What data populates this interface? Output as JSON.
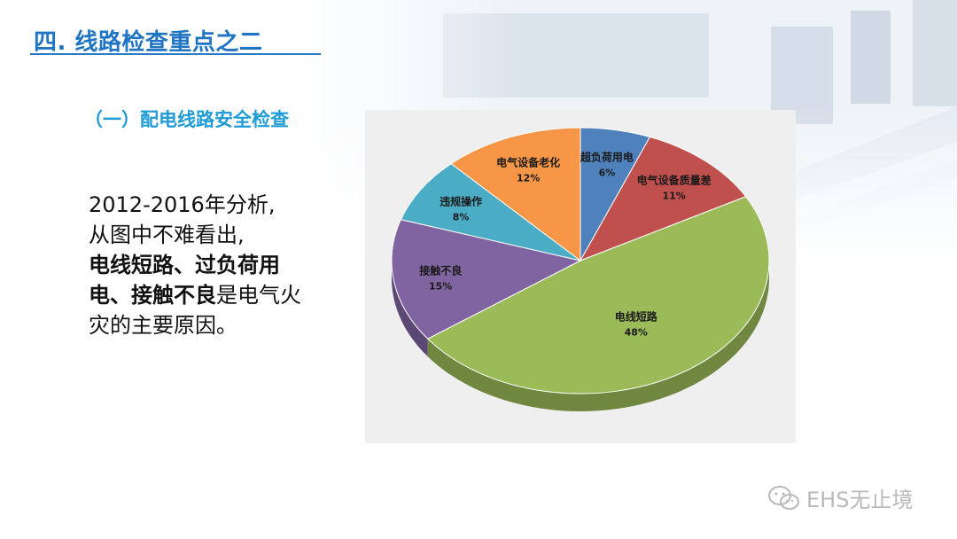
{
  "header": {
    "title": "四. 线路检查重点之二"
  },
  "subtitle": "（一）配电线路安全检查",
  "body": {
    "line1": "2012-2016年分析,",
    "line2": "从图中不难看出,",
    "bold": "电线短路、过负荷用电、接触不良",
    "line3": "是电气火灾的主要原因。"
  },
  "watermark": {
    "text": "EHS无止境",
    "icon": "wechat-icon"
  },
  "colors": {
    "title": "#1f74c4",
    "subtitle": "#1f9bd6"
  },
  "chart_data": {
    "type": "pie",
    "style": "3d",
    "title": "",
    "slices": [
      {
        "label": "超负荷用电",
        "value": 6,
        "pct_label": "6%",
        "color": "#4f81bd"
      },
      {
        "label": "电气设备质量差",
        "value": 11,
        "pct_label": "11%",
        "color": "#c0504d"
      },
      {
        "label": "电线短路",
        "value": 48,
        "pct_label": "48%",
        "color": "#9bbb59"
      },
      {
        "label": "接触不良",
        "value": 15,
        "pct_label": "15%",
        "color": "#8064a2"
      },
      {
        "label": "违规操作",
        "value": 8,
        "pct_label": "8%",
        "color": "#4bacc6"
      },
      {
        "label": "电气设备老化",
        "value": 12,
        "pct_label": "12%",
        "color": "#f79646"
      }
    ]
  }
}
